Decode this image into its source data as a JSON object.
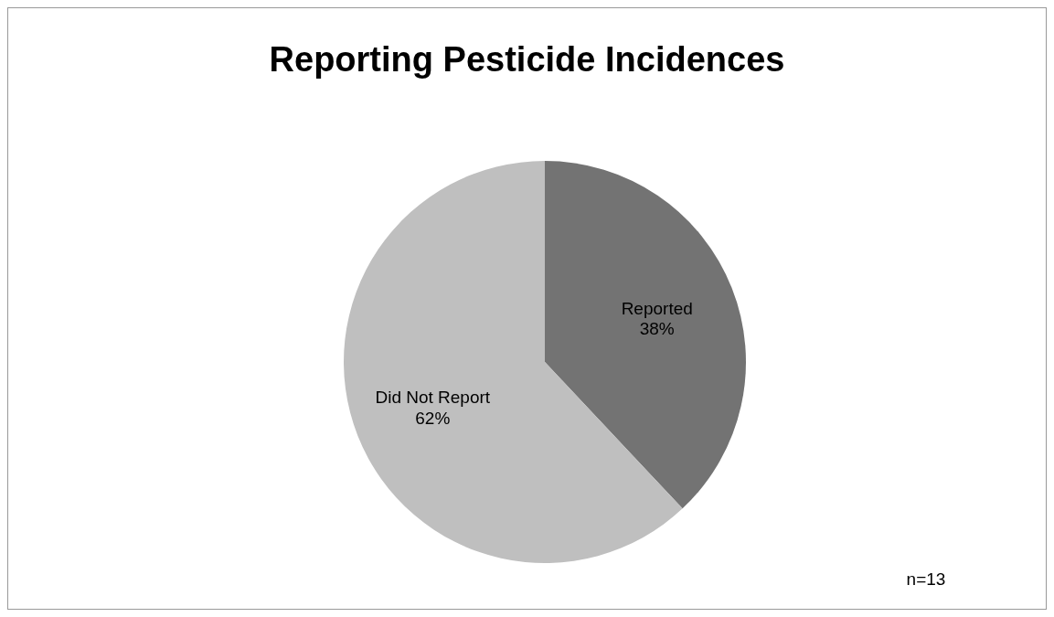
{
  "chart_data": {
    "type": "pie",
    "title": "Reporting Pesticide Incidences",
    "categories": [
      "Reported",
      "Did Not Report"
    ],
    "values": [
      38,
      62
    ],
    "colors": [
      "#737373",
      "#bfbfbf"
    ],
    "value_labels": [
      "38%",
      "62%"
    ],
    "annotations": [
      "n=13"
    ]
  }
}
